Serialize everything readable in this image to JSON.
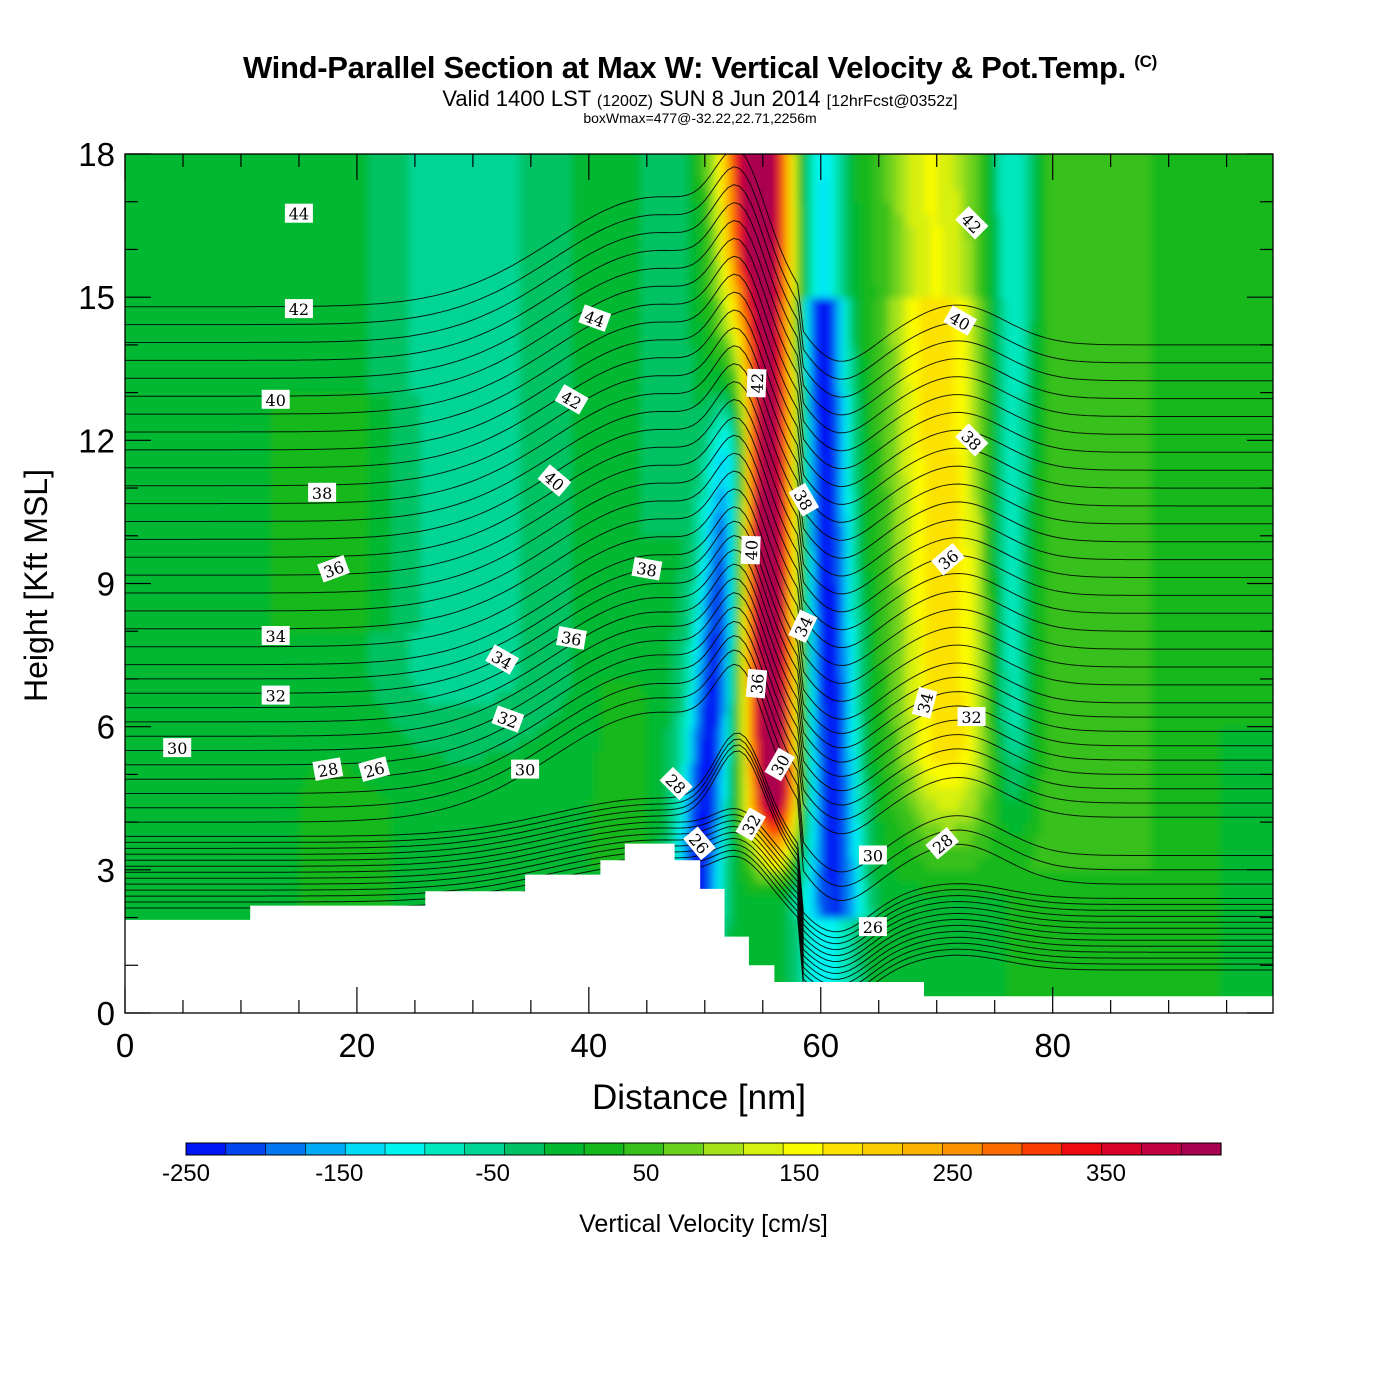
{
  "chart_data": {
    "type": "heatmap",
    "title": "Wind-Parallel Section at Max W: Vertical Velocity & Pot.Temp.",
    "title_mark": "(C)",
    "subtitle_parts": {
      "valid": "Valid 1400 LST",
      "zulu": "(1200Z)",
      "date": "SUN 8 Jun 2014",
      "fcst": "[12hrFcst@0352z]"
    },
    "box_note": "boxWmax=477@-32.22,22.71,2256m",
    "xlabel": "Distance [nm]",
    "ylabel": "Height [Kft MSL]",
    "xlim": [
      0,
      99
    ],
    "ylim": [
      0,
      18
    ],
    "x_ticks": [
      0,
      20,
      40,
      60,
      80
    ],
    "x_tick_labels": [
      "0",
      "20",
      "40",
      "60",
      "80"
    ],
    "y_ticks": [
      0,
      3,
      6,
      9,
      12,
      15,
      18
    ],
    "y_tick_labels": [
      "0",
      "3",
      "6",
      "9",
      "12",
      "15",
      "18"
    ],
    "terrain_profile": [
      [
        0,
        1.95
      ],
      [
        10.8,
        1.95
      ],
      [
        10.8,
        2.25
      ],
      [
        25.9,
        2.25
      ],
      [
        25.9,
        2.55
      ],
      [
        34.5,
        2.55
      ],
      [
        34.5,
        2.9
      ],
      [
        41,
        2.9
      ],
      [
        41,
        3.2
      ],
      [
        43.1,
        3.2
      ],
      [
        43.1,
        3.55
      ],
      [
        47.4,
        3.55
      ],
      [
        47.4,
        3.2
      ],
      [
        49.6,
        3.2
      ],
      [
        49.6,
        2.6
      ],
      [
        51.7,
        2.6
      ],
      [
        51.7,
        1.6
      ],
      [
        53.8,
        1.6
      ],
      [
        53.8,
        1.0
      ],
      [
        56,
        1.0
      ],
      [
        56,
        0.65
      ],
      [
        68.9,
        0.65
      ],
      [
        68.9,
        0.35
      ],
      [
        99,
        0.35
      ]
    ],
    "theta_labels": [
      {
        "text": "44",
        "x": 15,
        "y": 16.75,
        "rot": 0
      },
      {
        "text": "42",
        "x": 15,
        "y": 14.75,
        "rot": 0
      },
      {
        "text": "40",
        "x": 13,
        "y": 12.85,
        "rot": 0
      },
      {
        "text": "38",
        "x": 17,
        "y": 10.9,
        "rot": 0
      },
      {
        "text": "36",
        "x": 18,
        "y": 9.3,
        "rot": -20
      },
      {
        "text": "34",
        "x": 13,
        "y": 7.9,
        "rot": 0
      },
      {
        "text": "32",
        "x": 13,
        "y": 6.65,
        "rot": 0
      },
      {
        "text": "30",
        "x": 4.5,
        "y": 5.55,
        "rot": 0
      },
      {
        "text": "28",
        "x": 17.5,
        "y": 5.1,
        "rot": -10
      },
      {
        "text": "26",
        "x": 21.5,
        "y": 5.1,
        "rot": -15
      },
      {
        "text": "44",
        "x": 40.5,
        "y": 14.55,
        "rot": 20
      },
      {
        "text": "42",
        "x": 38.5,
        "y": 12.85,
        "rot": 30
      },
      {
        "text": "40",
        "x": 37,
        "y": 11.15,
        "rot": 40
      },
      {
        "text": "38",
        "x": 45,
        "y": 9.3,
        "rot": 10
      },
      {
        "text": "36",
        "x": 38.5,
        "y": 7.85,
        "rot": 10
      },
      {
        "text": "34",
        "x": 32.5,
        "y": 7.4,
        "rot": 30
      },
      {
        "text": "32",
        "x": 33,
        "y": 6.15,
        "rot": 20
      },
      {
        "text": "30",
        "x": 34.5,
        "y": 5.1,
        "rot": 0
      },
      {
        "text": "28",
        "x": 47.5,
        "y": 4.8,
        "rot": 45
      },
      {
        "text": "26",
        "x": 49.5,
        "y": 3.55,
        "rot": 50
      },
      {
        "text": "42",
        "x": 54.5,
        "y": 13.2,
        "rot": -88
      },
      {
        "text": "40",
        "x": 54,
        "y": 9.7,
        "rot": -88
      },
      {
        "text": "38",
        "x": 58.5,
        "y": 10.75,
        "rot": 60
      },
      {
        "text": "36",
        "x": 54.5,
        "y": 6.9,
        "rot": -85
      },
      {
        "text": "34",
        "x": 58.5,
        "y": 8.1,
        "rot": -65
      },
      {
        "text": "32",
        "x": 54,
        "y": 3.95,
        "rot": -60
      },
      {
        "text": "30",
        "x": 56.5,
        "y": 5.2,
        "rot": -60
      },
      {
        "text": "26",
        "x": 64.5,
        "y": 1.8,
        "rot": 0
      },
      {
        "text": "30",
        "x": 64.5,
        "y": 3.3,
        "rot": 0
      },
      {
        "text": "28",
        "x": 70.5,
        "y": 3.55,
        "rot": -40
      },
      {
        "text": "32",
        "x": 73,
        "y": 6.2,
        "rot": 0
      },
      {
        "text": "34",
        "x": 69,
        "y": 6.5,
        "rot": -75
      },
      {
        "text": "36",
        "x": 71,
        "y": 9.5,
        "rot": -40
      },
      {
        "text": "38",
        "x": 73,
        "y": 12.0,
        "rot": 45
      },
      {
        "text": "40",
        "x": 72,
        "y": 14.5,
        "rot": 30
      },
      {
        "text": "42",
        "x": 73,
        "y": 16.55,
        "rot": 45
      }
    ],
    "colorbar": {
      "label": "Vertical Velocity [cm/s]",
      "min": -250,
      "max": 425,
      "step": 25,
      "tick_values": [
        -250,
        -150,
        -50,
        50,
        150,
        250,
        350
      ],
      "tick_labels": [
        "-250",
        "-150",
        "-50",
        "50",
        "150",
        "250",
        "350"
      ],
      "colors": [
        "#0016f5",
        "#0045ee",
        "#0077f0",
        "#00aaf6",
        "#00dcf5",
        "#00f4f0",
        "#00e8be",
        "#00d594",
        "#00c264",
        "#00b830",
        "#15b81c",
        "#38c01c",
        "#6cd11a",
        "#a5e21a",
        "#d8f010",
        "#fcfc00",
        "#fbe200",
        "#fbcb00",
        "#fbb200",
        "#fb9300",
        "#fb6c00",
        "#fb3c00",
        "#ee0a10",
        "#d80028",
        "#c00040",
        "#a80050"
      ]
    }
  }
}
